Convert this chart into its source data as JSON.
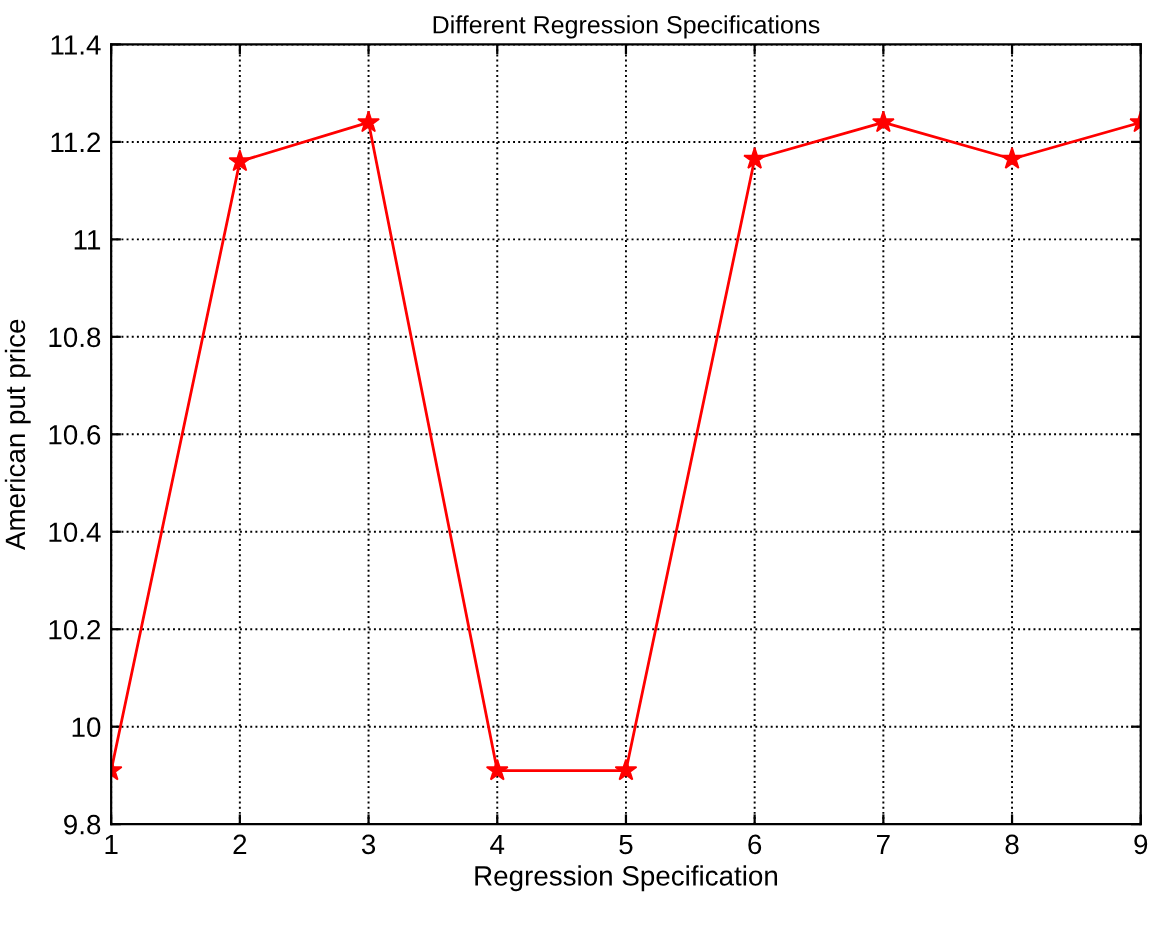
{
  "chart_data": {
    "type": "line",
    "title": "Different Regression Specifications",
    "xlabel": "Regression Specification",
    "ylabel": "American put price",
    "x": [
      1,
      2,
      3,
      4,
      5,
      6,
      7,
      8,
      9
    ],
    "series": [
      {
        "color": "#ff0000",
        "values": [
          9.91,
          11.16,
          11.24,
          9.91,
          9.91,
          11.165,
          11.24,
          11.165,
          11.24
        ]
      }
    ],
    "xlim": [
      1,
      9
    ],
    "xticks": [
      1,
      2,
      3,
      4,
      5,
      6,
      7,
      8,
      9
    ],
    "ylim": [
      9.8,
      11.4
    ],
    "yticks": [
      9.8,
      10,
      10.2,
      10.4,
      10.6,
      10.8,
      11,
      11.2,
      11.4
    ],
    "grid": true,
    "marker": "star",
    "line_style": "solid"
  }
}
